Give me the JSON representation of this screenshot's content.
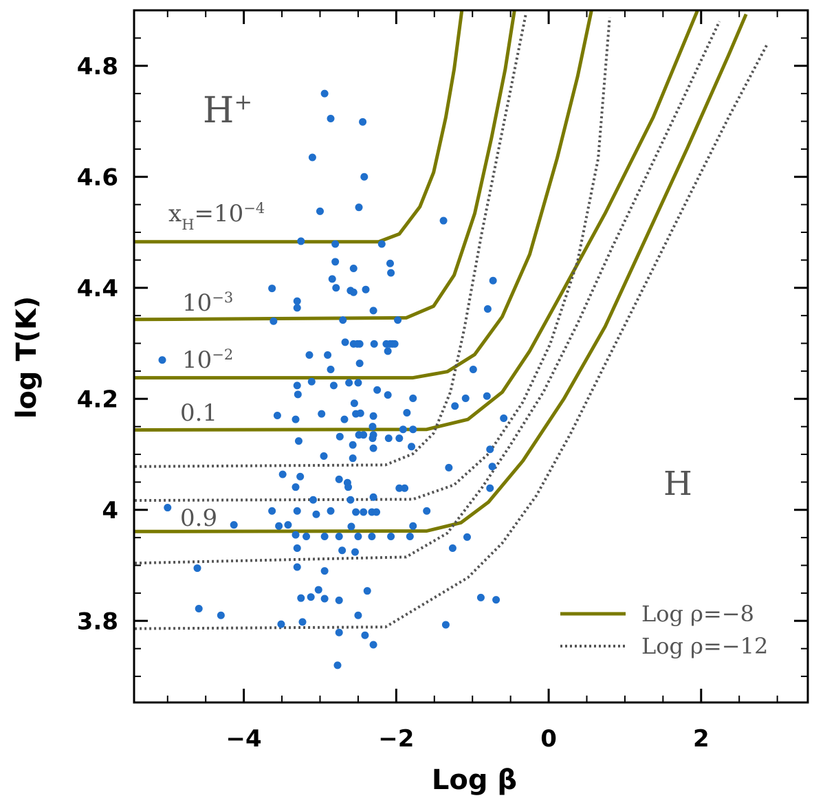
{
  "chart_data": {
    "type": "scatter",
    "xlabel": "Log β",
    "ylabel": "log T(K)",
    "xlim": [
      -5.44,
      3.4
    ],
    "ylim": [
      3.653,
      4.9
    ],
    "xticks": [
      {
        "value": -4,
        "label": "−4"
      },
      {
        "value": -2,
        "label": "−2"
      },
      0,
      2
    ],
    "yticks": [
      3.8,
      4,
      4.2,
      4.4,
      4.6,
      4.8
    ],
    "xminorticks": [
      -5,
      -4.5,
      -3.5,
      -3,
      -2.5,
      -1.5,
      -1,
      -0.5,
      0.5,
      1,
      1.5,
      2.5,
      3
    ],
    "yminorticks": [
      3.7,
      3.75,
      3.85,
      3.9,
      3.95,
      4.05,
      4.1,
      4.15,
      4.25,
      4.3,
      4.35,
      4.45,
      4.5,
      4.55,
      4.65,
      4.7,
      4.75,
      4.85
    ],
    "legend": "lower right",
    "points": {
      "color": "#1f6fcc",
      "x": [
        -2.94,
        -2.86,
        -2.44,
        -3.1,
        -2.42,
        -3.0,
        -2.49,
        -1.38,
        -3.25,
        -2.19,
        -2.8,
        -2.8,
        -2.08,
        -2.56,
        -2.07,
        -0.73,
        -3.63,
        -2.84,
        -2.79,
        -2.4,
        -2.6,
        -2.56,
        -3.3,
        -3.3,
        -0.8,
        -2.3,
        -2.7,
        -3.61,
        -1.98,
        -2.67,
        -2.56,
        -2.51,
        -2.48,
        -2.29,
        -2.13,
        -2.08,
        -2.05,
        -2.02,
        -2.11,
        -3.14,
        -2.9,
        -5.07,
        -2.48,
        -2.86,
        -3.11,
        -3.3,
        -2.62,
        -2.5,
        -2.82,
        -2.25,
        -2.11,
        -0.81,
        -3.29,
        -1.78,
        -1.09,
        -2.55,
        -1.23,
        -3.56,
        -2.98,
        -2.53,
        -2.47,
        -2.3,
        -1.86,
        -3.32,
        -2.68,
        -2.31,
        -1.91,
        -1.78,
        -0.59,
        -2.74,
        -2.49,
        -2.43,
        -2.3,
        -2.31,
        -2.1,
        -1.96,
        -1.8,
        -3.28,
        -0.99,
        -2.57,
        -2.3,
        -2.95,
        -2.57,
        -3.49,
        -3.26,
        -2.75,
        -2.64,
        -2.63,
        -3.32,
        -1.96,
        -1.89,
        -1.31,
        -0.77,
        -0.74,
        -0.77,
        -3.09,
        -2.86,
        -2.6,
        -2.3,
        -2.32,
        -2.26,
        -2.53,
        -2.43,
        -3.63,
        -3.3,
        -3.05,
        -3.42,
        -3.54,
        -4.13,
        -5.0,
        -1.6,
        -1.78,
        -2.59,
        -3.32,
        -3.18,
        -2.94,
        -2.75,
        -2.5,
        -2.32,
        -2.07,
        -1.82,
        -3.3,
        -2.71,
        -2.54,
        -1.07,
        -1.26,
        -3.3,
        -2.94,
        -3.25,
        -3.02,
        -3.12,
        -2.94,
        -2.75,
        -2.38,
        -3.23,
        -2.5,
        -4.61,
        -4.59,
        -4.3,
        -3.51,
        -1.35,
        -0.89,
        -0.69,
        -2.75,
        -2.41,
        -2.3,
        -2.77
      ],
      "values": [
        4.75,
        4.705,
        4.699,
        4.635,
        4.6,
        4.538,
        4.545,
        4.521,
        4.484,
        4.479,
        4.479,
        4.447,
        4.444,
        4.435,
        4.427,
        4.413,
        4.399,
        4.416,
        4.4,
        4.397,
        4.395,
        4.392,
        4.376,
        4.364,
        4.362,
        4.359,
        4.342,
        4.34,
        4.342,
        4.302,
        4.299,
        4.299,
        4.299,
        4.299,
        4.299,
        4.299,
        4.299,
        4.299,
        4.286,
        4.279,
        4.279,
        4.27,
        4.264,
        4.253,
        4.231,
        4.224,
        4.229,
        4.229,
        4.224,
        4.216,
        4.207,
        4.205,
        4.208,
        4.201,
        4.201,
        4.192,
        4.187,
        4.17,
        4.173,
        4.173,
        4.174,
        4.169,
        4.175,
        4.163,
        4.163,
        4.15,
        4.145,
        4.145,
        4.165,
        4.132,
        4.135,
        4.135,
        4.135,
        4.129,
        4.129,
        4.129,
        4.114,
        4.124,
        4.253,
        4.117,
        4.111,
        4.097,
        4.093,
        4.064,
        4.06,
        4.055,
        4.049,
        4.041,
        4.041,
        4.039,
        4.039,
        4.076,
        4.109,
        4.078,
        4.039,
        4.018,
        3.998,
        4.018,
        4.023,
        3.996,
        3.996,
        3.996,
        3.996,
        3.998,
        3.998,
        3.992,
        3.973,
        3.971,
        3.973,
        4.004,
        3.998,
        3.971,
        3.97,
        3.955,
        3.952,
        3.952,
        3.952,
        3.952,
        3.952,
        3.952,
        3.952,
        3.931,
        3.927,
        3.924,
        3.951,
        3.931,
        3.897,
        3.89,
        3.841,
        3.856,
        3.843,
        3.84,
        3.837,
        3.854,
        3.798,
        3.81,
        3.895,
        3.822,
        3.81,
        3.794,
        3.793,
        3.842,
        3.838,
        3.779,
        3.774,
        3.757,
        3.72
      ]
    },
    "series": [
      {
        "name": "Log ρ=−8",
        "color": "#7a7a00",
        "dash": "solid",
        "curves": [
          {
            "x": [
              -5.43,
              -2.23,
              -1.96,
              -1.69,
              -1.51,
              -1.35,
              -1.24,
              -1.14
            ],
            "values": [
              4.483,
              4.483,
              4.497,
              4.546,
              4.608,
              4.707,
              4.794,
              4.899
            ]
          },
          {
            "x": [
              -5.43,
              -1.87,
              -1.51,
              -1.24,
              -0.97,
              -0.75,
              -0.57,
              -0.45
            ],
            "values": [
              4.343,
              4.346,
              4.367,
              4.423,
              4.534,
              4.67,
              4.794,
              4.899
            ]
          },
          {
            "x": [
              -5.43,
              -1.78,
              -1.33,
              -0.97,
              -0.61,
              -0.25,
              0.11,
              0.38,
              0.56
            ],
            "values": [
              4.238,
              4.238,
              4.249,
              4.28,
              4.348,
              4.46,
              4.633,
              4.781,
              4.899
            ]
          },
          {
            "x": [
              -5.43,
              -1.6,
              -1.06,
              -0.61,
              -0.25,
              0.2,
              0.74,
              1.37,
              1.95
            ],
            "values": [
              4.144,
              4.145,
              4.163,
              4.212,
              4.286,
              4.398,
              4.534,
              4.707,
              4.899
            ]
          },
          {
            "x": [
              -5.43,
              -1.6,
              -1.15,
              -0.79,
              -0.34,
              0.2,
              0.74,
              1.28,
              1.82,
              2.36,
              2.59
            ],
            "values": [
              3.961,
              3.962,
              3.977,
              4.014,
              4.088,
              4.2,
              4.33,
              4.491,
              4.652,
              4.819,
              4.893
            ]
          }
        ]
      },
      {
        "name": "Log ρ=−12",
        "color": "#555555",
        "dash": "dotted",
        "curves": [
          {
            "x": [
              -5.43,
              -2.14,
              -1.78,
              -1.51,
              -1.29,
              -1.11,
              -0.88,
              -0.61,
              -0.3
            ],
            "values": [
              4.078,
              4.081,
              4.101,
              4.138,
              4.212,
              4.324,
              4.497,
              4.682,
              4.893
            ]
          },
          {
            "x": [
              -5.43,
              -1.78,
              -1.24,
              -0.79,
              -0.34,
              0.02,
              0.38,
              0.65,
              0.8
            ],
            "values": [
              4.017,
              4.019,
              4.045,
              4.101,
              4.194,
              4.299,
              4.448,
              4.633,
              4.887
            ]
          },
          {
            "x": [
              -5.43,
              -1.87,
              -1.33,
              -0.88,
              -0.52,
              -0.07,
              0.38,
              0.83,
              1.37,
              1.82,
              2.24
            ],
            "values": [
              3.904,
              3.915,
              3.958,
              4.039,
              4.113,
              4.212,
              4.336,
              4.472,
              4.627,
              4.757,
              4.88
            ]
          },
          {
            "x": [
              -5.43,
              -2.14,
              -1.51,
              -1.06,
              -0.61,
              -0.16,
              0.29,
              0.74,
              1.28,
              1.82,
              2.36,
              2.86
            ],
            "values": [
              3.786,
              3.789,
              3.841,
              3.878,
              3.94,
              4.026,
              4.138,
              4.262,
              4.41,
              4.559,
              4.707,
              4.837
            ]
          }
        ]
      }
    ],
    "annotations": [
      {
        "parts": [
          {
            "text": "H"
          },
          {
            "text": "+",
            "shift": "super"
          }
        ]
      },
      {
        "parts": [
          {
            "text": "x"
          },
          {
            "text": "H",
            "shift": "sub"
          },
          {
            "text": "=10"
          },
          {
            "text": "−4",
            "shift": "super"
          }
        ]
      },
      {
        "parts": [
          {
            "text": "10"
          },
          {
            "text": "−3",
            "shift": "super"
          }
        ]
      },
      {
        "parts": [
          {
            "text": "10"
          },
          {
            "text": "−2",
            "shift": "super"
          }
        ]
      },
      {
        "parts": [
          {
            "text": "0.1"
          }
        ]
      },
      {
        "parts": [
          {
            "text": "0.9"
          }
        ]
      },
      {
        "parts": [
          {
            "text": "H"
          }
        ]
      }
    ]
  }
}
